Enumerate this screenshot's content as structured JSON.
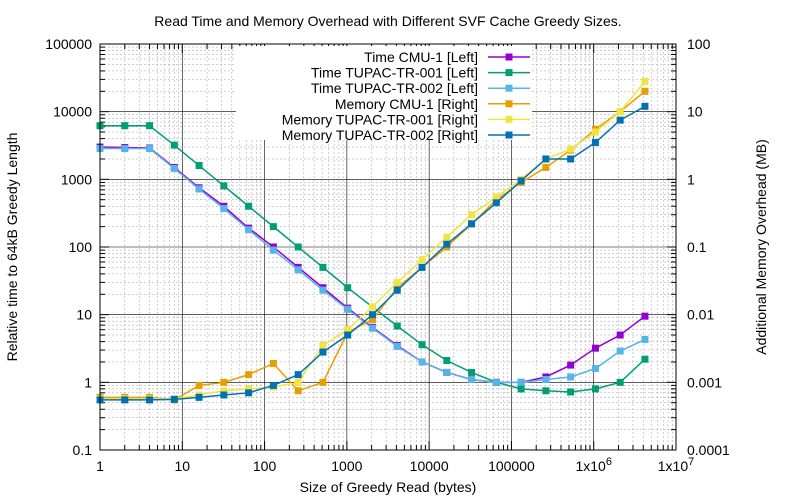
{
  "chart_data": {
    "type": "line",
    "title": "Read Time and Memory Overhead with Different SVF Cache Greedy Sizes.",
    "xlabel": "Size of Greedy Read (bytes)",
    "ylabel": "Relative time to 64kB Greedy Length",
    "y2label": "Additional Memory Overhead (MB)",
    "x_scale": "log",
    "y_scale": "log",
    "y2_scale": "log",
    "xlim": [
      1,
      10000000
    ],
    "ylim": [
      0.1,
      100000
    ],
    "y2lim": [
      0.0001,
      100
    ],
    "grid": true,
    "legend_position": "top-center",
    "x_tick_labels": [
      "1",
      "10",
      "100",
      "1000",
      "10000",
      "100000",
      "1x10^6",
      "1x10^7"
    ],
    "y_tick_labels": [
      "0.1",
      "1",
      "10",
      "100",
      "1000",
      "10000",
      "100000"
    ],
    "y2_tick_labels": [
      "0.0001",
      "0.001",
      "0.01",
      "0.1",
      "1",
      "10",
      "100"
    ],
    "x": [
      1,
      2,
      4,
      8,
      16,
      32,
      64,
      128,
      256,
      512,
      1024,
      2048,
      4096,
      8192,
      16384,
      32768,
      65536,
      131072,
      262144,
      524288,
      1048576,
      2097152,
      4194304
    ],
    "series": [
      {
        "name": "Time CMU-1 [Left]",
        "axis": "left",
        "color": "#9400d3",
        "values": [
          3000,
          2950,
          2900,
          1500,
          750,
          400,
          190,
          100,
          50,
          25,
          12.5,
          6.5,
          3.5,
          2.0,
          1.4,
          1.1,
          1.0,
          1.0,
          1.2,
          1.8,
          3.2,
          5.0,
          9.5
        ]
      },
      {
        "name": "Time TUPAC-TR-001 [Left]",
        "axis": "left",
        "color": "#009e73",
        "values": [
          6200,
          6200,
          6200,
          3200,
          1600,
          800,
          400,
          200,
          100,
          50,
          25,
          13,
          6.8,
          3.6,
          2.1,
          1.4,
          1.0,
          0.8,
          0.75,
          0.72,
          0.8,
          1.0,
          2.2
        ]
      },
      {
        "name": "Time TUPAC-TR-002 [Left]",
        "axis": "left",
        "color": "#56b4e9",
        "values": [
          2850,
          2850,
          2850,
          1450,
          720,
          370,
          180,
          90,
          46,
          23,
          12,
          6.3,
          3.4,
          2.0,
          1.4,
          1.1,
          1.0,
          1.0,
          1.1,
          1.2,
          1.6,
          2.9,
          4.3
        ]
      },
      {
        "name": "Memory CMU-1 [Right]",
        "axis": "right",
        "color": "#e69f00",
        "values": [
          0.0006,
          0.0006,
          0.0006,
          0.00055,
          0.0009,
          0.001,
          0.0013,
          0.0019,
          0.00075,
          0.001,
          0.0055,
          0.0085,
          0.025,
          0.05,
          0.1,
          0.22,
          0.5,
          0.9,
          1.5,
          2.7,
          5.5,
          10,
          20
        ]
      },
      {
        "name": "Memory TUPAC-TR-001 [Right]",
        "axis": "right",
        "color": "#f0e442",
        "values": [
          0.00057,
          0.00057,
          0.00057,
          0.00057,
          0.00065,
          0.00075,
          0.0008,
          0.00085,
          0.001,
          0.0035,
          0.006,
          0.013,
          0.03,
          0.065,
          0.14,
          0.3,
          0.55,
          1.0,
          2.0,
          2.8,
          5.0,
          10,
          28
        ]
      },
      {
        "name": "Memory TUPAC-TR-002 [Right]",
        "axis": "right",
        "color": "#0072b2",
        "values": [
          0.00055,
          0.00055,
          0.00055,
          0.00056,
          0.0006,
          0.00065,
          0.0007,
          0.0009,
          0.0013,
          0.0028,
          0.005,
          0.01,
          0.023,
          0.05,
          0.11,
          0.22,
          0.45,
          0.95,
          2.0,
          2.0,
          3.5,
          7.5,
          12
        ]
      }
    ]
  }
}
